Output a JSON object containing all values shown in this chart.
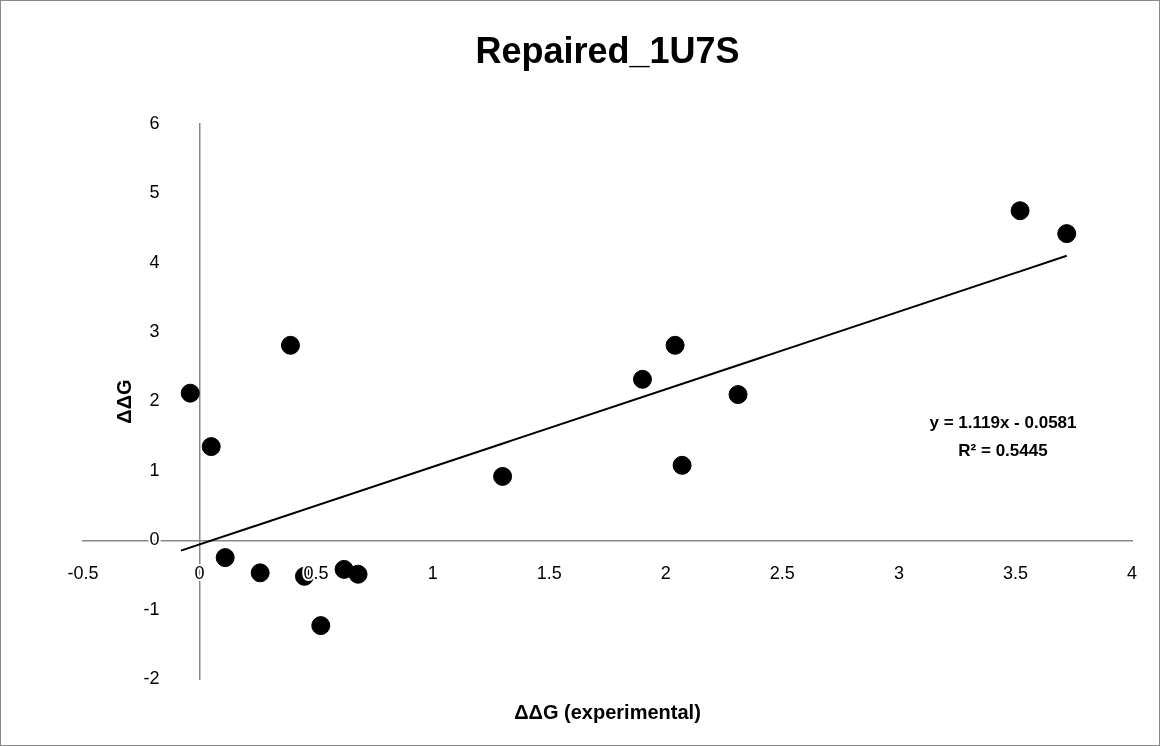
{
  "chart_data": {
    "type": "scatter",
    "title": "Repaired_1U7S",
    "xlabel": "ΔΔG (experimental)",
    "ylabel": "ΔΔG",
    "series": [
      {
        "color": "#000000",
        "marker": "circle",
        "x": [
          -0.04,
          0.05,
          0.11,
          0.26,
          0.39,
          0.45,
          0.52,
          0.62,
          0.68,
          1.3,
          1.9,
          2.04,
          2.07,
          2.31,
          3.52,
          3.72
        ],
        "values": [
          2.12,
          1.35,
          -0.25,
          -0.47,
          2.81,
          -0.52,
          -1.23,
          -0.42,
          -0.49,
          0.92,
          2.32,
          2.81,
          1.08,
          2.1,
          4.75,
          4.42
        ]
      },
      {
        "type": "line",
        "color": "#000000",
        "marker": "none",
        "x": [
          -0.08,
          3.72
        ],
        "values": [
          -0.15,
          4.1
        ]
      }
    ],
    "xlim": [
      -0.5,
      4
    ],
    "xticks": [
      -0.5,
      0,
      0.5,
      1,
      1.5,
      2,
      2.5,
      3,
      3.5,
      4
    ],
    "ylim": [
      -2,
      6
    ],
    "yticks": [
      -2,
      -1,
      0,
      1,
      2,
      3,
      4,
      5,
      6
    ],
    "grid": false,
    "legend": false,
    "annotations": [
      "y = 1.119x - 0.0581",
      "R² = 0.5445"
    ]
  }
}
